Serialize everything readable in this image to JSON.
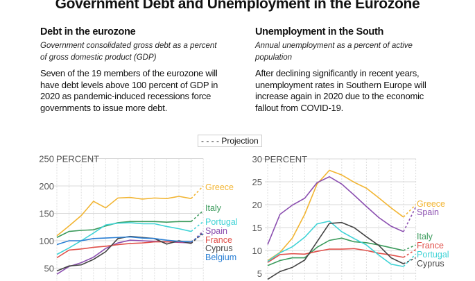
{
  "title": "Government Debt and Unemployment in the Eurozone",
  "left": {
    "heading": "Debt in the eurozone",
    "subtitle": "Government consolidated gross debt as a percent of gross domestic product (GDP)",
    "description": "Seven of the 19 members of the eurozone will have debt levels above 100 percent of GDP in 2020 as pandemic-induced recessions force governments to issue more debt."
  },
  "right": {
    "heading": "Unemployment in the South",
    "subtitle": "Annual unemployment as a percent of active population",
    "description": "After declining significantly in recent years, unemployment rates in Southern Europe will increase again in 2020 due to the economic fallout from COVID-19."
  },
  "legend": {
    "label": "Projection",
    "style": "dashed"
  },
  "chart_data": [
    {
      "type": "line",
      "ylabel": "PERCENT",
      "yticks": [
        50,
        100,
        150,
        200,
        250
      ],
      "ylim": [
        40,
        250
      ],
      "grid": true,
      "series": [
        {
          "name": "Greece",
          "color": "#f2b533",
          "values": [
            109,
            127,
            146,
            172,
            160,
            178,
            179,
            176,
            178,
            177,
            181,
            177
          ],
          "projection": 200
        },
        {
          "name": "Italy",
          "color": "#3a9a5b",
          "values": [
            106,
            117,
            119,
            120,
            127,
            133,
            135,
            135,
            135,
            134,
            135,
            135
          ],
          "projection": 155
        },
        {
          "name": "Portugal",
          "color": "#3fd3d6",
          "values": [
            75,
            87,
            100,
            114,
            129,
            132,
            133,
            131,
            131,
            126,
            122,
            117
          ],
          "projection": 135
        },
        {
          "name": "Spain",
          "color": "#8b4fb0",
          "values": [
            39,
            53,
            60,
            70,
            86,
            96,
            101,
            100,
            99,
            98,
            97,
            96
          ],
          "projection": 118
        },
        {
          "name": "France",
          "color": "#e0504a",
          "values": [
            69,
            83,
            85,
            88,
            90,
            93,
            95,
            96,
            98,
            98,
            98,
            98
          ],
          "projection": 112
        },
        {
          "name": "Cyprus",
          "color": "#444444",
          "values": [
            45,
            54,
            56,
            66,
            80,
            104,
            108,
            106,
            104,
            94,
            100,
            95
          ],
          "projection": 115
        },
        {
          "name": "Belgium",
          "color": "#2a7fd4",
          "values": [
            93,
            100,
            100,
            104,
            105,
            106,
            107,
            105,
            104,
            101,
            99,
            98
          ],
          "projection": 113
        }
      ]
    },
    {
      "type": "line",
      "ylabel": "PERCENT",
      "yticks": [
        5,
        10,
        15,
        20,
        25,
        30
      ],
      "ylim": [
        3,
        30
      ],
      "grid": true,
      "series": [
        {
          "name": "Greece",
          "color": "#f2b533",
          "values": [
            7.8,
            9.6,
            12.7,
            17.9,
            24.5,
            27.5,
            26.5,
            24.9,
            23.6,
            21.5,
            19.3,
            17.3
          ],
          "projection": 20
        },
        {
          "name": "Spain",
          "color": "#8b4fb0",
          "values": [
            11.3,
            17.9,
            19.9,
            21.4,
            24.8,
            26.1,
            24.5,
            22.1,
            19.6,
            17.2,
            15.3,
            14.1
          ],
          "projection": 19.5
        },
        {
          "name": "Italy",
          "color": "#3a9a5b",
          "values": [
            6.7,
            7.8,
            8.4,
            8.4,
            10.7,
            12.2,
            12.7,
            11.9,
            11.7,
            11.2,
            10.6,
            10.0
          ],
          "projection": 11.2
        },
        {
          "name": "France",
          "color": "#e0504a",
          "values": [
            7.4,
            9.1,
            9.3,
            9.2,
            9.8,
            10.3,
            10.3,
            10.4,
            10.0,
            9.4,
            9.0,
            8.5
          ],
          "projection": 10.2
        },
        {
          "name": "Portugal",
          "color": "#3fd3d6",
          "values": [
            7.6,
            9.5,
            10.8,
            12.9,
            15.8,
            16.4,
            14.1,
            12.6,
            11.2,
            9.0,
            7.0,
            6.5
          ],
          "projection": 9.2
        },
        {
          "name": "Cyprus",
          "color": "#444444",
          "values": [
            3.7,
            5.4,
            6.3,
            7.9,
            11.9,
            15.9,
            16.1,
            15.0,
            13.0,
            11.1,
            8.4,
            7.1
          ],
          "projection": 8.4
        }
      ]
    }
  ]
}
